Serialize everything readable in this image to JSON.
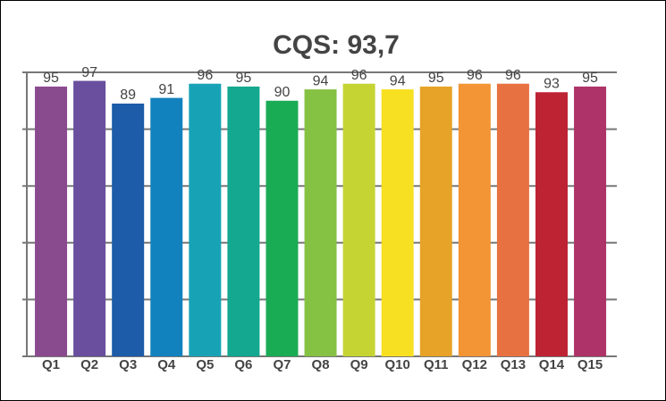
{
  "chart_data": {
    "type": "bar",
    "title": "CQS: 93,7",
    "categories": [
      "Q1",
      "Q2",
      "Q3",
      "Q4",
      "Q5",
      "Q6",
      "Q7",
      "Q8",
      "Q9",
      "Q10",
      "Q11",
      "Q12",
      "Q13",
      "Q14",
      "Q15"
    ],
    "values": [
      95,
      97,
      89,
      91,
      96,
      95,
      90,
      94,
      96,
      94,
      95,
      96,
      96,
      93,
      95
    ],
    "colors": [
      "#8a4a8e",
      "#6a4f9e",
      "#1c5ca8",
      "#1282be",
      "#17a3b5",
      "#13a88f",
      "#1aab55",
      "#85c143",
      "#c5d432",
      "#f7e021",
      "#e6a327",
      "#f39535",
      "#e87141",
      "#be2334",
      "#ad3368"
    ],
    "ylim": [
      0,
      100
    ],
    "yticks": [
      0,
      20,
      40,
      60,
      80,
      100
    ],
    "grid": true
  }
}
